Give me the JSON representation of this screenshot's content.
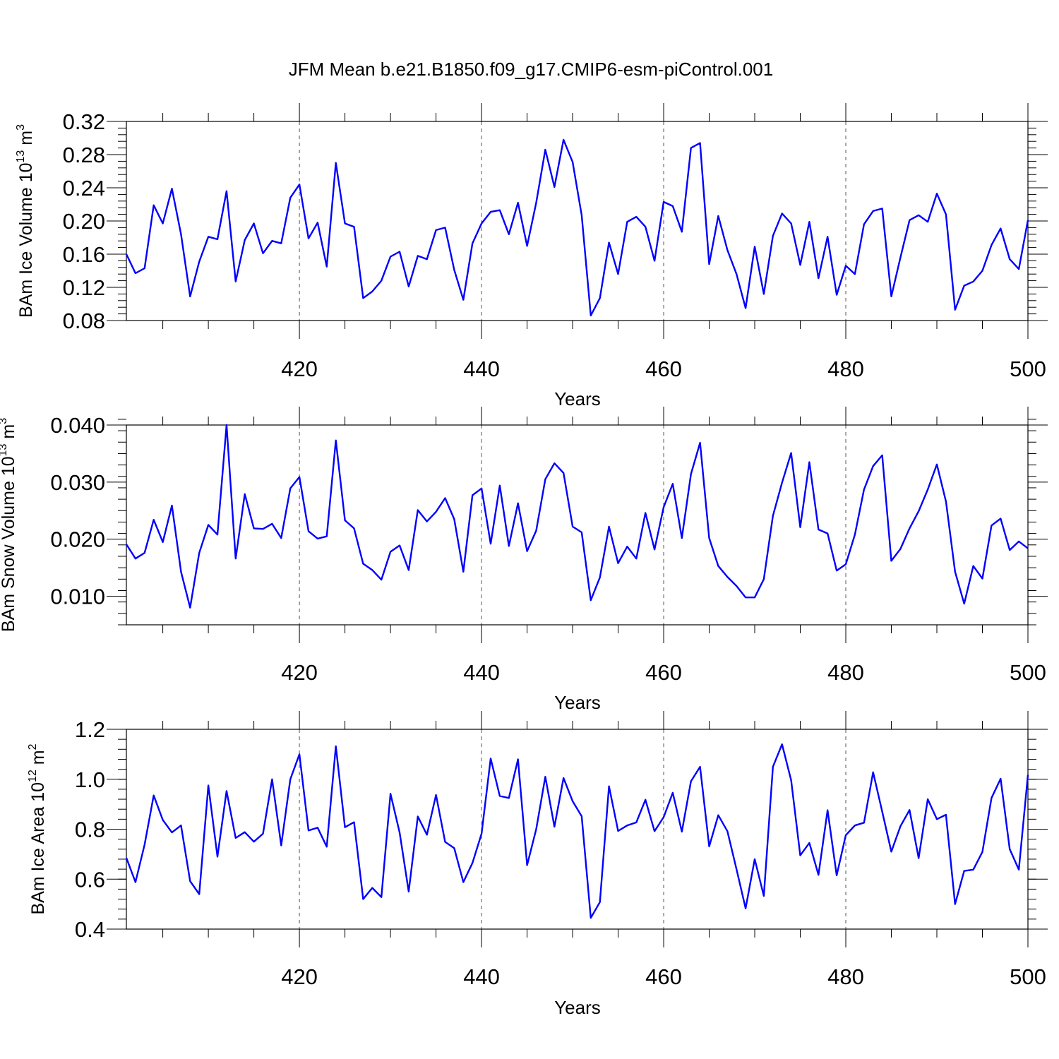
{
  "title": "JFM Mean b.e21.B1850.f09_g17.CMIP6-esm-piControl.001",
  "chart_data": [
    {
      "type": "line",
      "ylabel_main": "BAm Ice Volume 10",
      "ylabel_exp": "13",
      "ylabel_unit": " m",
      "ylabel_unit_exp": "3",
      "xlabel": "Years",
      "xlim": [
        401,
        500
      ],
      "ylim": [
        0.08,
        0.32
      ],
      "yticks": [
        0.08,
        0.12,
        0.16,
        0.2,
        0.24,
        0.28,
        0.32
      ],
      "ytick_labels": [
        "0.08",
        "0.12",
        "0.16",
        "0.20",
        "0.24",
        "0.28",
        "0.32"
      ],
      "ytick_minor": 0.008,
      "xticks": [
        420,
        440,
        460,
        480,
        500
      ],
      "xtick_labels": [
        "420",
        "440",
        "460",
        "480",
        "500"
      ],
      "color": "#0000ff",
      "x_start": 401,
      "values": [
        0.16,
        0.137,
        0.143,
        0.219,
        0.197,
        0.239,
        0.184,
        0.109,
        0.151,
        0.181,
        0.178,
        0.236,
        0.127,
        0.177,
        0.197,
        0.161,
        0.176,
        0.173,
        0.228,
        0.244,
        0.179,
        0.198,
        0.145,
        0.27,
        0.197,
        0.193,
        0.107,
        0.115,
        0.128,
        0.157,
        0.163,
        0.121,
        0.158,
        0.154,
        0.189,
        0.192,
        0.141,
        0.105,
        0.173,
        0.197,
        0.211,
        0.213,
        0.184,
        0.222,
        0.17,
        0.222,
        0.286,
        0.241,
        0.298,
        0.271,
        0.207,
        0.086,
        0.107,
        0.174,
        0.136,
        0.199,
        0.205,
        0.193,
        0.152,
        0.223,
        0.218,
        0.187,
        0.288,
        0.294,
        0.148,
        0.206,
        0.165,
        0.136,
        0.095,
        0.169,
        0.112,
        0.182,
        0.209,
        0.197,
        0.147,
        0.199,
        0.131,
        0.181,
        0.111,
        0.146,
        0.136,
        0.196,
        0.212,
        0.215,
        0.109,
        0.156,
        0.201,
        0.207,
        0.199,
        0.233,
        0.208,
        0.093,
        0.122,
        0.127,
        0.14,
        0.171,
        0.191,
        0.154,
        0.142,
        0.201
      ]
    },
    {
      "type": "line",
      "ylabel_main": "BAm Snow Volume 10",
      "ylabel_exp": "13",
      "ylabel_unit": " m",
      "ylabel_unit_exp": "3",
      "xlabel": "Years",
      "xlim": [
        401,
        500
      ],
      "ylim": [
        0.005,
        0.04
      ],
      "yticks": [
        0.01,
        0.02,
        0.03,
        0.04
      ],
      "ytick_labels": [
        "0.010",
        "0.020",
        "0.030",
        "0.040"
      ],
      "ytick_minor": 0.002,
      "xticks": [
        420,
        440,
        460,
        480,
        500
      ],
      "xtick_labels": [
        "420",
        "440",
        "460",
        "480",
        "500"
      ],
      "color": "#0000ff",
      "x_start": 401,
      "values": [
        0.0191,
        0.0166,
        0.0176,
        0.0234,
        0.0195,
        0.0259,
        0.0143,
        0.008,
        0.0176,
        0.0225,
        0.0208,
        0.04,
        0.0166,
        0.0279,
        0.0219,
        0.0218,
        0.0227,
        0.0202,
        0.0289,
        0.0309,
        0.0214,
        0.0201,
        0.0205,
        0.0373,
        0.0233,
        0.0219,
        0.0157,
        0.0146,
        0.0129,
        0.0178,
        0.0189,
        0.0146,
        0.0251,
        0.0231,
        0.0248,
        0.0272,
        0.0235,
        0.0143,
        0.0277,
        0.0289,
        0.0192,
        0.0294,
        0.0188,
        0.0263,
        0.0179,
        0.0215,
        0.0305,
        0.0333,
        0.0316,
        0.0222,
        0.0212,
        0.0093,
        0.0133,
        0.0222,
        0.0158,
        0.0187,
        0.0166,
        0.0246,
        0.0182,
        0.0256,
        0.0297,
        0.0202,
        0.0314,
        0.0369,
        0.0202,
        0.0153,
        0.0134,
        0.0118,
        0.0098,
        0.0098,
        0.013,
        0.0241,
        0.0299,
        0.0351,
        0.0221,
        0.0335,
        0.0217,
        0.021,
        0.0145,
        0.0156,
        0.0208,
        0.0287,
        0.0328,
        0.0347,
        0.0162,
        0.0183,
        0.0219,
        0.0249,
        0.0287,
        0.0331,
        0.0266,
        0.0143,
        0.0087,
        0.0153,
        0.0131,
        0.0224,
        0.0236,
        0.0181,
        0.0196,
        0.0184
      ]
    },
    {
      "type": "line",
      "ylabel_main": "BAm Ice Area 10",
      "ylabel_exp": "12",
      "ylabel_unit": " m",
      "ylabel_unit_exp": "2",
      "xlabel": "Years",
      "xlim": [
        401,
        500
      ],
      "ylim": [
        0.4,
        1.2
      ],
      "yticks": [
        0.4,
        0.6,
        0.8,
        1.0,
        1.2
      ],
      "ytick_labels": [
        "0.4",
        "0.6",
        "0.8",
        "1.0",
        "1.2"
      ],
      "ytick_minor": 0.04,
      "xticks": [
        420,
        440,
        460,
        480,
        500
      ],
      "xtick_labels": [
        "420",
        "440",
        "460",
        "480",
        "500"
      ],
      "color": "#0000ff",
      "x_start": 401,
      "values": [
        0.685,
        0.588,
        0.738,
        0.935,
        0.837,
        0.787,
        0.815,
        0.592,
        0.54,
        0.975,
        0.69,
        0.953,
        0.765,
        0.788,
        0.75,
        0.782,
        1.0,
        0.735,
        1.0,
        1.1,
        0.795,
        0.806,
        0.73,
        1.132,
        0.808,
        0.828,
        0.52,
        0.565,
        0.528,
        0.942,
        0.787,
        0.55,
        0.851,
        0.778,
        0.937,
        0.749,
        0.724,
        0.588,
        0.665,
        0.782,
        1.083,
        0.933,
        0.925,
        1.08,
        0.656,
        0.8,
        1.01,
        0.81,
        1.005,
        0.912,
        0.852,
        0.445,
        0.508,
        0.972,
        0.793,
        0.815,
        0.827,
        0.918,
        0.792,
        0.848,
        0.946,
        0.79,
        0.992,
        1.05,
        0.731,
        0.856,
        0.792,
        0.64,
        0.483,
        0.68,
        0.533,
        1.05,
        1.14,
        0.996,
        0.695,
        0.745,
        0.617,
        0.876,
        0.615,
        0.776,
        0.815,
        0.826,
        1.028,
        0.87,
        0.71,
        0.812,
        0.877,
        0.684,
        0.92,
        0.84,
        0.858,
        0.5,
        0.633,
        0.638,
        0.709,
        0.925,
        1.002,
        0.72,
        0.638,
        1.018
      ]
    }
  ]
}
